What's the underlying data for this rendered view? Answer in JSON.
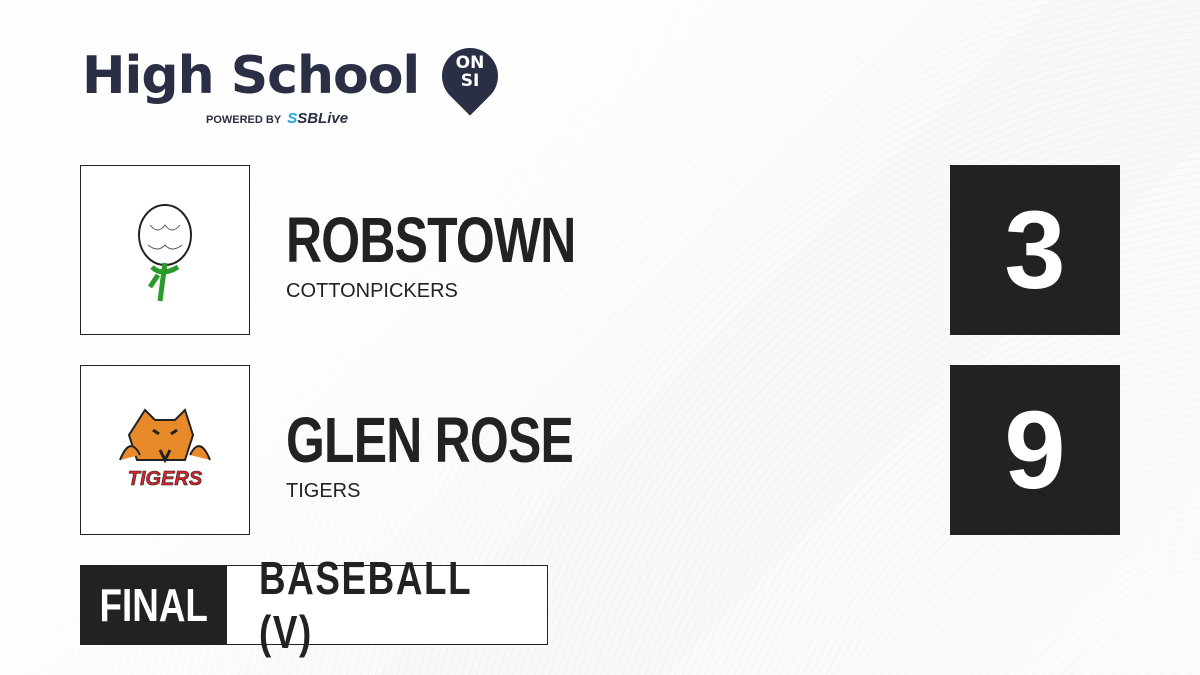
{
  "brand": {
    "title": "High School",
    "badge_line1": "ON",
    "badge_line2": "SI",
    "powered_by": "POWERED BY",
    "partner_s": "S",
    "partner_rest": "SBLive"
  },
  "teams": [
    {
      "name": "ROBSTOWN",
      "mascot": "COTTONPICKERS",
      "score": "3",
      "logo_icon": "cotton-boll"
    },
    {
      "name": "GLEN ROSE",
      "mascot": "TIGERS",
      "score": "9",
      "logo_icon": "tiger",
      "logo_text": "TIGERS"
    }
  ],
  "status": "FINAL",
  "sport": "BASEBALL (V)",
  "colors": {
    "dark": "#222222",
    "brand": "#2b2f45",
    "accent": "#1fa8e0"
  }
}
